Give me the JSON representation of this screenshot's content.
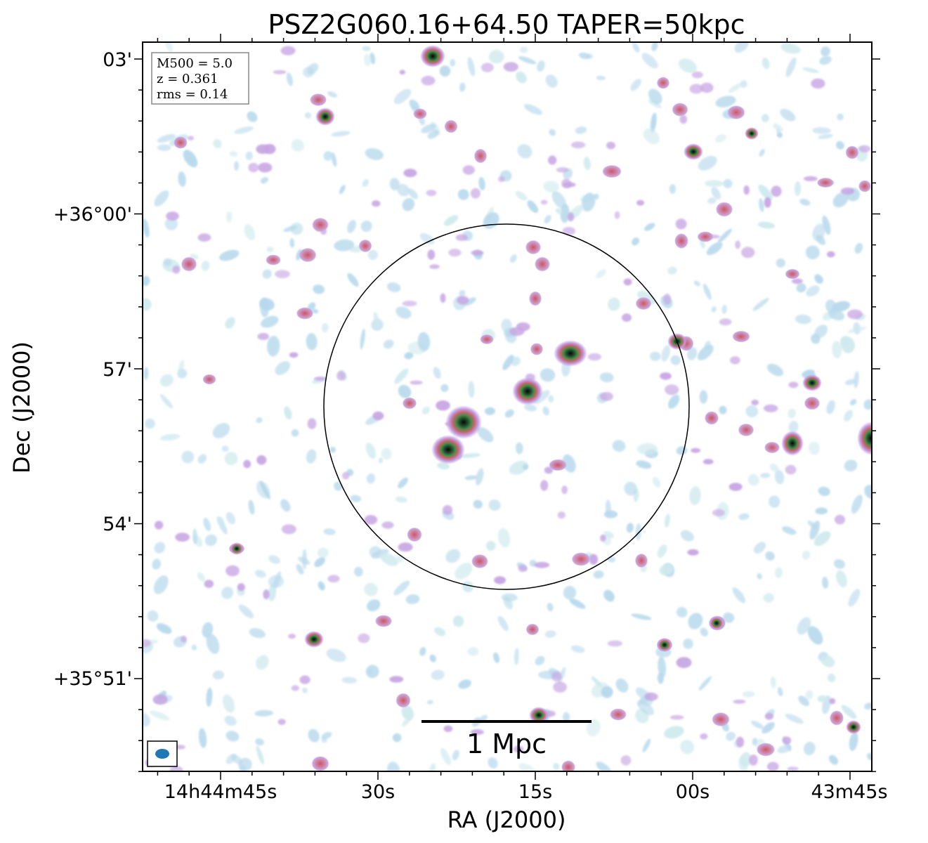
{
  "title": "PSZ2G060.16+64.50 TAPER=50kpc",
  "xlabel": "RA (J2000)",
  "ylabel": "Dec (J2000)",
  "x_ticks": [
    "14h44m45s",
    "30s",
    "15s",
    "00s",
    "43m45s"
  ],
  "y_ticks": [
    "03'",
    "+36°00'",
    "57'",
    "54'",
    "+35°51'"
  ],
  "info": {
    "m500": "M500 = 5.0",
    "z": "z = 0.361",
    "rms": "rms = 0.14"
  },
  "scale_bar": {
    "label": "1 Mpc"
  },
  "colors": {
    "faint": "#b7d9ec",
    "mid": "#c7a6e3",
    "bright": "#cf6f8a",
    "core": "#3a6a3a",
    "peak": "#0a0f0a",
    "beam": "#1f77b4"
  }
}
